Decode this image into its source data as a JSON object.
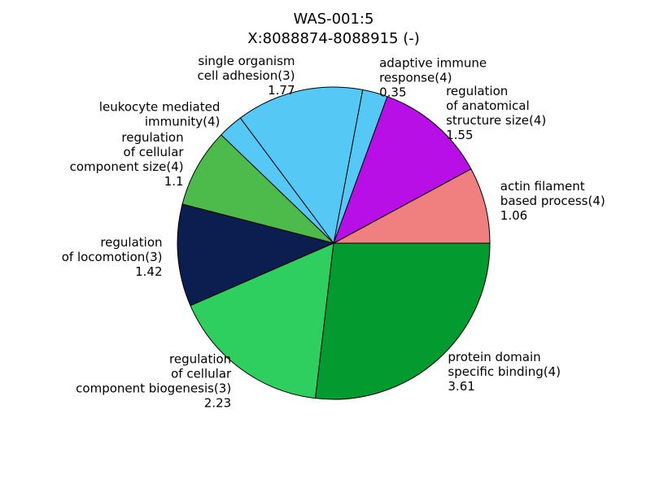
{
  "chart_data": {
    "type": "pie",
    "title": "WAS-001:5\nX:8088874-8088915 (-)",
    "legend": "none",
    "slices": [
      {
        "label": "actin filament\nbased process(4)",
        "value": 1.06,
        "value_label": "1.06",
        "color": "#f07f7f"
      },
      {
        "label": "regulation\nof anatomical\nstructure size(4)",
        "value": 1.55,
        "value_label": "1.55",
        "color": "#b70fe6"
      },
      {
        "label": "adaptive immune\nresponse(4)",
        "value": 0.35,
        "value_label": "0.35",
        "color": "#55c8f5"
      },
      {
        "label": "single organism\ncell adhesion(3)",
        "value": 1.77,
        "value_label": "1.77",
        "color": "#55c8f5"
      },
      {
        "label": "leukocyte mediated\nimmunity(4)",
        "value": 0.35,
        "value_label": "",
        "color": "#55c8f5"
      },
      {
        "label": "regulation\nof cellular\ncomponent size(4)",
        "value": 1.1,
        "value_label": "1.1",
        "color": "#4cbb4c"
      },
      {
        "label": "regulation\nof locomotion(3)",
        "value": 1.42,
        "value_label": "1.42",
        "color": "#0c1d4f"
      },
      {
        "label": "regulation\nof cellular\ncomponent biogenesis(3)",
        "value": 2.23,
        "value_label": "2.23",
        "color": "#2ecf5e"
      },
      {
        "label": "protein domain\nspecific binding(4)",
        "value": 3.61,
        "value_label": "3.61",
        "color": "#039a2f"
      }
    ]
  }
}
